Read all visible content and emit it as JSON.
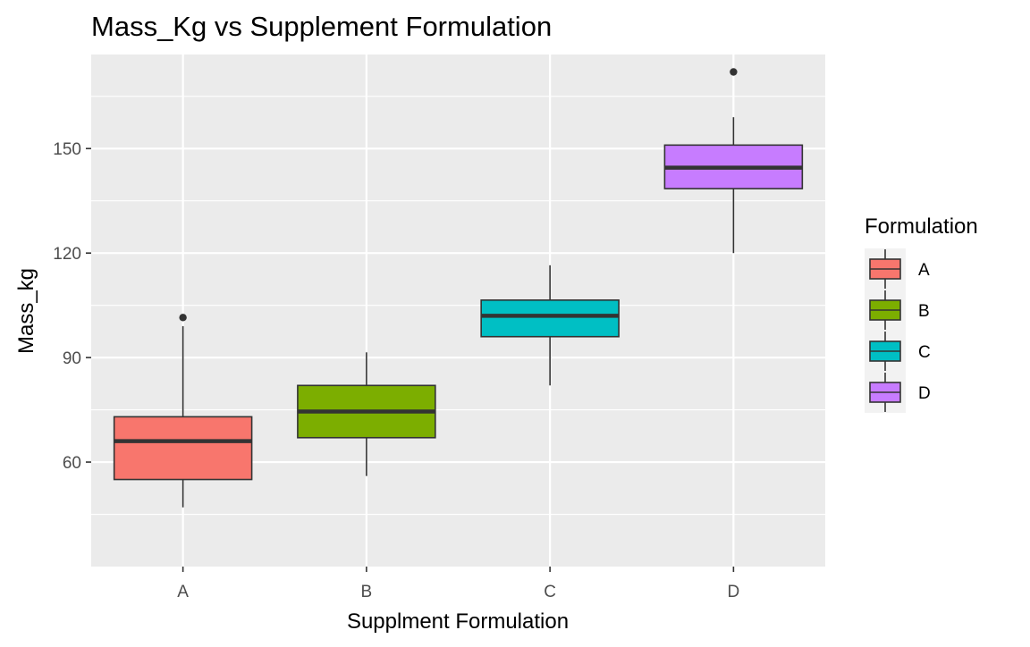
{
  "chart_data": {
    "type": "boxplot",
    "title": "Mass_Kg vs Supplement Formulation",
    "xlabel": "Supplment Formulation",
    "ylabel": "Mass_kg",
    "categories": [
      "A",
      "B",
      "C",
      "D"
    ],
    "ylim": [
      30,
      177
    ],
    "yticks": [
      60,
      90,
      120,
      150
    ],
    "grid": true,
    "legend": {
      "title": "Formulation",
      "position": "right",
      "entries": [
        "A",
        "B",
        "C",
        "D"
      ]
    },
    "colors": {
      "A": "#F8766D",
      "B": "#7CAE00",
      "C": "#00BFC4",
      "D": "#C77CFF",
      "panel_background": "#EBEBEB",
      "grid": "#FFFFFF",
      "box_outline": "#333333"
    },
    "series": [
      {
        "category": "A",
        "whisker_low": 47,
        "q1": 55,
        "median": 66,
        "q3": 73,
        "whisker_high": 99,
        "outliers": [
          101.5
        ]
      },
      {
        "category": "B",
        "whisker_low": 56,
        "q1": 67,
        "median": 74.5,
        "q3": 82,
        "whisker_high": 91.5,
        "outliers": []
      },
      {
        "category": "C",
        "whisker_low": 82,
        "q1": 96,
        "median": 102,
        "q3": 106.5,
        "whisker_high": 116.5,
        "outliers": []
      },
      {
        "category": "D",
        "whisker_low": 120,
        "q1": 138.5,
        "median": 144.5,
        "q3": 151,
        "whisker_high": 159,
        "outliers": [
          172
        ]
      }
    ]
  }
}
